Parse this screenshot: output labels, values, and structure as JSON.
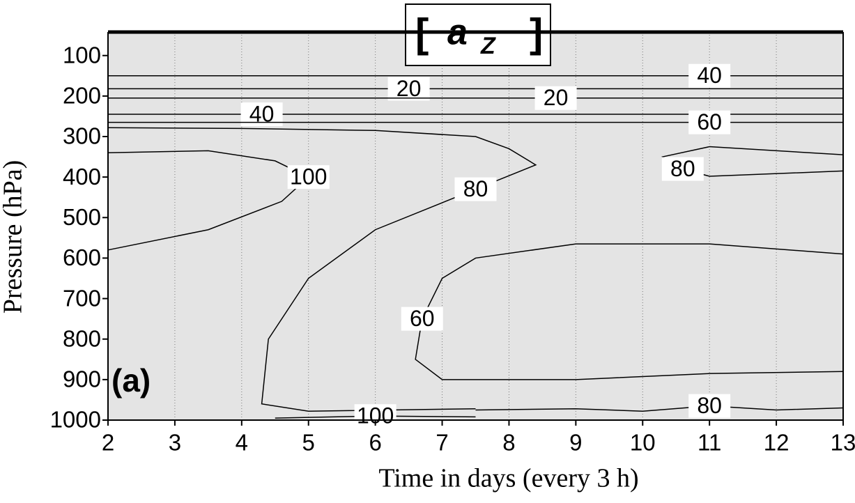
{
  "chart_data": {
    "type": "contour",
    "title": [
      "[",
      "a",
      "Z",
      "]"
    ],
    "panel_label": "(a)",
    "x_label": "Time in days (every 3 h)",
    "y_label": "Pressure (hPa)",
    "xlim": [
      2,
      13
    ],
    "xticks": [
      2,
      3,
      4,
      5,
      6,
      7,
      8,
      9,
      10,
      11,
      12,
      13
    ],
    "ylim": [
      1000,
      42
    ],
    "yticks": [
      100,
      200,
      300,
      400,
      500,
      600,
      700,
      800,
      900,
      1000
    ],
    "grid": true,
    "fill_color": "#e4e4e4",
    "line_color": "#000000",
    "contours": [
      {
        "level": 40,
        "x": [
          2,
          6,
          11,
          13
        ],
        "y": [
          150,
          150,
          150,
          150
        ]
      },
      {
        "level": 20,
        "x": [
          2,
          6.5,
          13
        ],
        "y": [
          182,
          182,
          182
        ]
      },
      {
        "level": 20,
        "x": [
          2,
          8.7,
          13
        ],
        "y": [
          205,
          205,
          205
        ]
      },
      {
        "level": 40,
        "x": [
          2,
          4.3,
          13
        ],
        "y": [
          245,
          245,
          245
        ]
      },
      {
        "level": 60,
        "x": [
          2,
          11,
          13
        ],
        "y": [
          265,
          265,
          265
        ]
      },
      {
        "level": 80,
        "x": [
          2,
          4,
          6,
          7.5,
          8,
          8.4,
          7.5,
          6,
          5,
          4.4,
          4.3,
          5,
          7.5
        ],
        "y": [
          278,
          280,
          285,
          300,
          330,
          370,
          430,
          530,
          650,
          800,
          960,
          978,
          972
        ]
      },
      {
        "level": 100,
        "x": [
          2,
          3.5,
          4.5,
          5,
          4.6,
          3.5,
          2
        ],
        "y": [
          340,
          335,
          360,
          400,
          460,
          530,
          580
        ]
      },
      {
        "level": 80,
        "x": [
          13,
          11,
          10.3,
          10.6,
          11,
          13
        ],
        "y": [
          345,
          325,
          350,
          380,
          398,
          385
        ]
      },
      {
        "level": 60,
        "x": [
          13,
          11,
          9,
          7.5,
          7,
          6.7,
          6.6,
          7,
          9,
          11,
          13
        ],
        "y": [
          590,
          565,
          565,
          600,
          650,
          750,
          850,
          900,
          900,
          885,
          880
        ]
      },
      {
        "level": 80,
        "x": [
          7.5,
          9,
          10,
          11,
          12,
          13
        ],
        "y": [
          975,
          972,
          978,
          965,
          975,
          970
        ]
      },
      {
        "level": 100,
        "x": [
          4.5,
          6,
          7.5
        ],
        "y": [
          995,
          990,
          992
        ]
      }
    ]
  }
}
